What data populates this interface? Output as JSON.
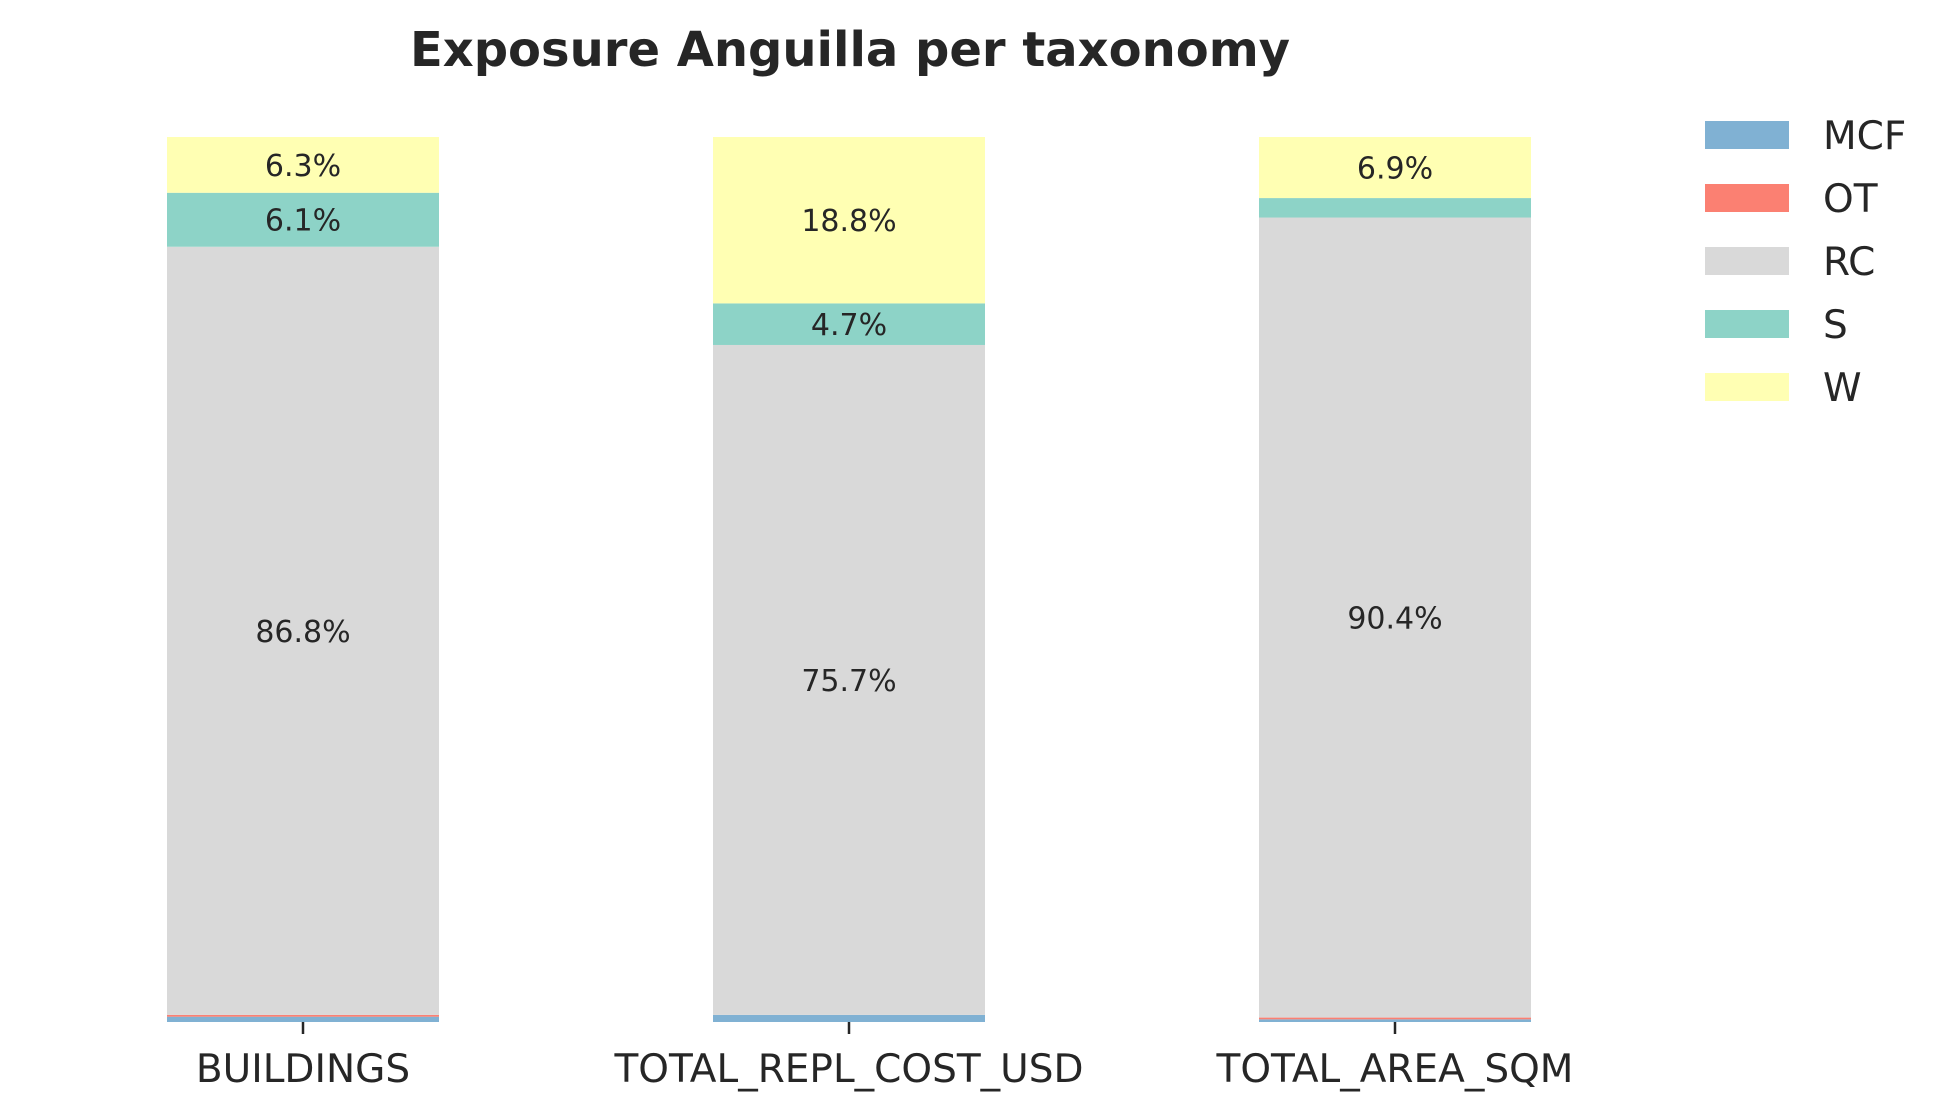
{
  "chart_data": {
    "type": "bar",
    "stacked": true,
    "normalized": true,
    "title": "Exposure Anguilla per taxonomy",
    "xlabel": "",
    "ylabel": "",
    "ylim": [
      0,
      100
    ],
    "grid": false,
    "legend_position": "top-right",
    "categories": [
      "BUILDINGS",
      "TOTAL_REPL_COST_USD",
      "TOTAL_AREA_SQM"
    ],
    "series": [
      {
        "name": "MCF",
        "color": "#80b1d3",
        "values": [
          0.6,
          0.8,
          0.3
        ],
        "labels": [
          "",
          "",
          ""
        ]
      },
      {
        "name": "OT",
        "color": "#fb8072",
        "values": [
          0.2,
          0.0,
          0.2
        ],
        "labels": [
          "",
          "",
          ""
        ]
      },
      {
        "name": "RC",
        "color": "#d9d9d9",
        "values": [
          86.8,
          75.7,
          90.4
        ],
        "labels": [
          "86.8%",
          "75.7%",
          "90.4%"
        ]
      },
      {
        "name": "S",
        "color": "#8dd3c7",
        "values": [
          6.1,
          4.7,
          2.2
        ],
        "labels": [
          "6.1%",
          "4.7%",
          ""
        ]
      },
      {
        "name": "W",
        "color": "#ffffb3",
        "values": [
          6.3,
          18.8,
          6.9
        ],
        "labels": [
          "6.3%",
          "18.8%",
          "6.9%"
        ]
      }
    ]
  }
}
